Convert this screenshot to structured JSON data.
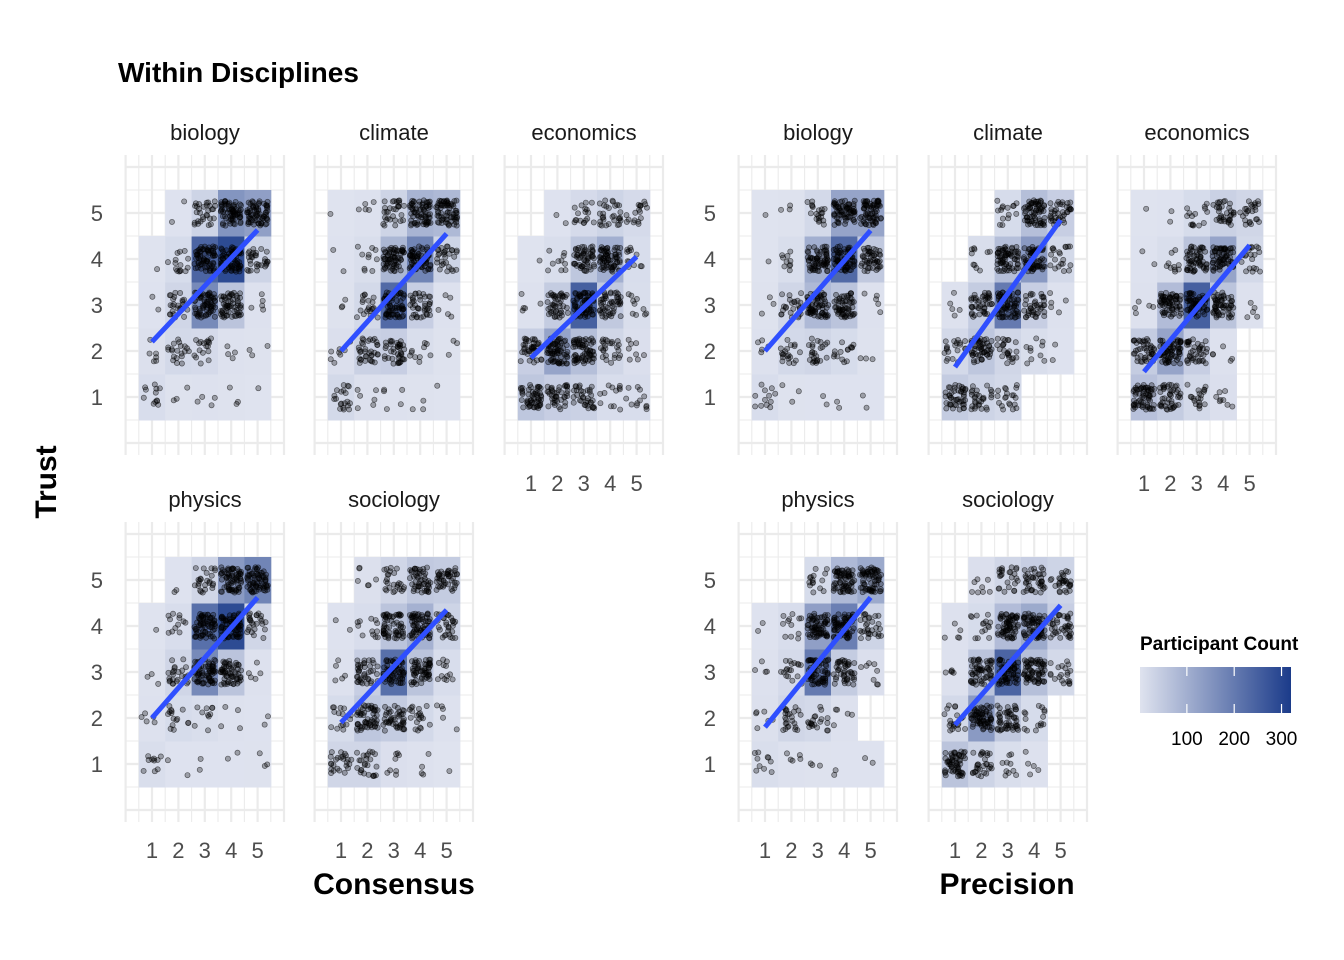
{
  "chart_data": {
    "type": "heatmap",
    "title": "Within Disciplines",
    "ylabel": "Trust",
    "colors": {
      "low": "#dfe3ef",
      "high": "#1b3b8a",
      "fit_line": "#2f4fff",
      "points": "#000000",
      "grid": "#ebebeb"
    },
    "legend": {
      "title": "Participant Count",
      "ticks": [
        100,
        200,
        300
      ],
      "range": [
        1,
        320
      ]
    },
    "x_ticks": [
      1,
      2,
      3,
      4,
      5
    ],
    "y_ticks": [
      1,
      2,
      3,
      4,
      5
    ],
    "plots": [
      {
        "xlabel": "Consensus",
        "panels": [
          {
            "name": "biology",
            "counts": [
              [
                12,
                3,
                4,
                3,
                1
              ],
              [
                6,
                20,
                18,
                4,
                3
              ],
              [
                2,
                25,
                170,
                60,
                5
              ],
              [
                1,
                15,
                240,
                290,
                30
              ],
              [
                0,
                2,
                30,
                150,
                130
              ]
            ],
            "fit": [
              2.2,
              4.63
            ]
          },
          {
            "name": "climate",
            "counts": [
              [
                20,
                6,
                5,
                3,
                1
              ],
              [
                8,
                35,
                40,
                10,
                3
              ],
              [
                3,
                20,
                230,
                40,
                5
              ],
              [
                2,
                10,
                85,
                180,
                30
              ],
              [
                1,
                5,
                30,
                90,
                80
              ]
            ],
            "fit": [
              2.0,
              4.55
            ]
          },
          {
            "name": "economics",
            "counts": [
              [
                55,
                40,
                35,
                12,
                12
              ],
              [
                40,
                120,
                70,
                25,
                8
              ],
              [
                5,
                45,
                250,
                50,
                10
              ],
              [
                1,
                10,
                55,
                100,
                12
              ],
              [
                0,
                2,
                18,
                30,
                18
              ]
            ],
            "fit": [
              1.85,
              4.05
            ]
          },
          {
            "name": "physics",
            "counts": [
              [
                10,
                2,
                2,
                2,
                3
              ],
              [
                5,
                15,
                10,
                4,
                2
              ],
              [
                3,
                25,
                170,
                60,
                5
              ],
              [
                1,
                12,
                220,
                290,
                25
              ],
              [
                0,
                2,
                25,
                140,
                180
              ]
            ],
            "fit": [
              2.0,
              4.62
            ]
          },
          {
            "name": "sociology",
            "counts": [
              [
                25,
                25,
                8,
                4,
                1
              ],
              [
                15,
                55,
                45,
                20,
                5
              ],
              [
                5,
                40,
                220,
                60,
                12
              ],
              [
                2,
                12,
                60,
                95,
                30
              ],
              [
                0,
                6,
                25,
                50,
                45
              ]
            ],
            "fit": [
              1.9,
              4.35
            ]
          }
        ]
      },
      {
        "xlabel": "Precision",
        "panels": [
          {
            "name": "biology",
            "counts": [
              [
                12,
                3,
                2,
                2,
                2
              ],
              [
                5,
                20,
                25,
                15,
                3
              ],
              [
                3,
                25,
                80,
                60,
                5
              ],
              [
                1,
                10,
                100,
                230,
                50
              ],
              [
                1,
                3,
                20,
                120,
                120
              ]
            ],
            "fit": [
              2.0,
              4.62
            ]
          },
          {
            "name": "climate",
            "counts": [
              [
                45,
                30,
                20,
                0,
                0
              ],
              [
                20,
                55,
                25,
                10,
                2
              ],
              [
                5,
                45,
                200,
                40,
                5
              ],
              [
                0,
                10,
                70,
                140,
                20
              ],
              [
                0,
                0,
                15,
                70,
                40
              ]
            ],
            "fit": [
              1.65,
              4.85
            ]
          },
          {
            "name": "economics",
            "counts": [
              [
                65,
                45,
                20,
                8,
                0
              ],
              [
                45,
                120,
                40,
                5,
                0
              ],
              [
                5,
                75,
                250,
                60,
                5
              ],
              [
                2,
                10,
                60,
                120,
                20
              ],
              [
                1,
                2,
                15,
                35,
                25
              ]
            ],
            "fit": [
              1.55,
              4.3
            ]
          },
          {
            "name": "physics",
            "counts": [
              [
                10,
                5,
                3,
                2,
                2
              ],
              [
                6,
                25,
                20,
                5,
                0
              ],
              [
                4,
                18,
                200,
                45,
                8
              ],
              [
                2,
                12,
                130,
                190,
                30
              ],
              [
                0,
                0,
                15,
                80,
                110
              ]
            ],
            "fit": [
              1.8,
              4.62
            ]
          },
          {
            "name": "sociology",
            "counts": [
              [
                60,
                30,
                10,
                5,
                0
              ],
              [
                20,
                140,
                50,
                15,
                0
              ],
              [
                5,
                60,
                240,
                70,
                20
              ],
              [
                5,
                15,
                75,
                110,
                40
              ],
              [
                0,
                8,
                25,
                40,
                30
              ]
            ],
            "fit": [
              1.85,
              4.45
            ]
          }
        ]
      }
    ]
  }
}
